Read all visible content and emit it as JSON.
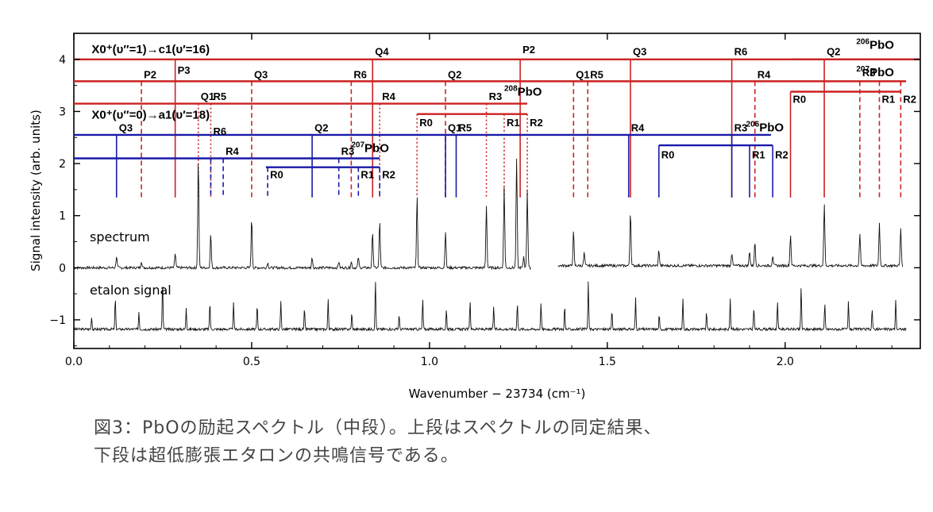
{
  "chart_data": {
    "type": "line",
    "xlabel": "Wavenumber − 23734 (cm⁻¹)",
    "ylabel": "Signal intensity (arb. units)",
    "xlim": [
      0,
      2.38
    ],
    "ylim": [
      -1.55,
      4.5
    ],
    "xticks": [
      0.0,
      0.5,
      1.0,
      1.5,
      2.0
    ],
    "xtick_labels": [
      "0.0",
      "0.5",
      "1.0",
      "1.5",
      "2.0"
    ],
    "yticks": [
      -1,
      0,
      1,
      2,
      3,
      4
    ],
    "ytick_labels": [
      "−1",
      "0",
      "1",
      "2",
      "3",
      "4"
    ],
    "grid": false,
    "trace_labels": {
      "spectrum": "spectrum",
      "etalon": "etalon signal"
    },
    "spectrum_peaks": [
      {
        "x": 0.12,
        "y": 0.22
      },
      {
        "x": 0.19,
        "y": 0.13
      },
      {
        "x": 0.285,
        "y": 0.28
      },
      {
        "x": 0.35,
        "y": 2.1
      },
      {
        "x": 0.385,
        "y": 0.65
      },
      {
        "x": 0.5,
        "y": 0.95
      },
      {
        "x": 0.545,
        "y": 0.1
      },
      {
        "x": 0.67,
        "y": 0.2
      },
      {
        "x": 0.745,
        "y": 0.12
      },
      {
        "x": 0.78,
        "y": 0.12
      },
      {
        "x": 0.8,
        "y": 0.2
      },
      {
        "x": 0.84,
        "y": 0.7
      },
      {
        "x": 0.86,
        "y": 0.9
      },
      {
        "x": 0.965,
        "y": 1.35
      },
      {
        "x": 1.045,
        "y": 0.7
      },
      {
        "x": 1.16,
        "y": 1.2
      },
      {
        "x": 1.21,
        "y": 1.55
      },
      {
        "x": 1.245,
        "y": 2.1
      },
      {
        "x": 1.265,
        "y": 0.22
      },
      {
        "x": 1.275,
        "y": 1.5
      },
      {
        "x": 1.405,
        "y": 0.65
      },
      {
        "x": 1.435,
        "y": 0.25
      },
      {
        "x": 1.565,
        "y": 1.05
      },
      {
        "x": 1.645,
        "y": 0.3
      },
      {
        "x": 1.85,
        "y": 0.25
      },
      {
        "x": 1.9,
        "y": 0.28
      },
      {
        "x": 1.915,
        "y": 0.45
      },
      {
        "x": 1.965,
        "y": 0.2
      },
      {
        "x": 2.015,
        "y": 0.6
      },
      {
        "x": 2.11,
        "y": 1.18
      },
      {
        "x": 2.21,
        "y": 0.62
      },
      {
        "x": 2.265,
        "y": 0.82
      },
      {
        "x": 2.325,
        "y": 0.72
      }
    ],
    "spectrum_gap": [
      1.285,
      1.36
    ],
    "etalon_baseline": -1.18,
    "etalon_fsr": 0.0665,
    "annotation_groups": [
      {
        "name": "X0⁺(υ″=1)→c1(υ′=16)",
        "color": "#cc2222",
        "isotope": "",
        "y": 4.0,
        "x1": 0,
        "x2": 2.38,
        "label_x": 0.05,
        "label_y": 4.12,
        "lines": [
          {
            "label": "P3",
            "x": 0.285,
            "style": "solid",
            "label_y": 3.72
          }
        ]
      },
      {
        "name": "",
        "color": "#cc2222",
        "isotope": "206PbO",
        "y": 4.0,
        "x1": 2.02,
        "x2": 2.38,
        "label_x": 2.2,
        "label_y": 4.2,
        "lines": []
      },
      {
        "name": "",
        "color": "#cc2222",
        "isotope": "",
        "y": 4.0,
        "x1": 0,
        "x2": 0,
        "label_x": 0,
        "label_y": 0,
        "lines": [
          {
            "label": "Q4",
            "x": 0.84,
            "style": "solid",
            "label_y": 4.08
          },
          {
            "label": "P2",
            "x": 1.255,
            "style": "solid",
            "label_y": 4.12
          },
          {
            "label": "Q3",
            "x": 1.565,
            "style": "solid",
            "label_y": 4.08
          },
          {
            "label": "R6",
            "x": 1.85,
            "style": "solid",
            "label_y": 4.08
          },
          {
            "label": "Q2",
            "x": 2.11,
            "style": "solid",
            "label_y": 4.08
          }
        ]
      },
      {
        "name": "",
        "color": "#cc2222",
        "isotope": "207PbO",
        "y": 3.58,
        "x1": 0,
        "x2": 2.34,
        "label_x": 2.2,
        "label_y": 3.68,
        "lines": [
          {
            "label": "P2",
            "x": 0.19,
            "style": "dashed",
            "label_y": 3.64
          },
          {
            "label": "Q3",
            "x": 0.5,
            "style": "dashed",
            "label_y": 3.64
          },
          {
            "label": "R6",
            "x": 0.78,
            "style": "dashed",
            "label_y": 3.64
          },
          {
            "label": "Q2",
            "x": 1.045,
            "style": "dashed",
            "label_y": 3.64
          },
          {
            "label": "Q1",
            "x": 1.405,
            "style": "dashed",
            "label_y": 3.64
          },
          {
            "label": "R5",
            "x": 1.445,
            "style": "dashed",
            "label_y": 3.64
          },
          {
            "label": "R4",
            "x": 1.915,
            "style": "dashed",
            "label_y": 3.64
          },
          {
            "label": "R3",
            "x": 2.21,
            "style": "dashed",
            "label_y": 3.68
          },
          {
            "label": "R1",
            "x": 2.265,
            "style": "dashed",
            "label_y": 3.17
          },
          {
            "label": "R2",
            "x": 2.325,
            "style": "dashed",
            "label_y": 3.17
          }
        ]
      },
      {
        "name": "",
        "color": "#cc2222",
        "isotope": "",
        "y": 3.38,
        "x1": 2.015,
        "x2": 2.325,
        "label_x": 0,
        "label_y": 0,
        "lines": [
          {
            "label": "R0",
            "x": 2.015,
            "style": "solid",
            "label_y": 3.17
          }
        ]
      },
      {
        "name": "",
        "color": "#cc2222",
        "isotope": "208PbO",
        "y": 3.15,
        "x1": 0,
        "x2": 1.275,
        "label_x": 1.21,
        "label_y": 3.3,
        "lines": [
          {
            "label": "Q1",
            "x": 0.35,
            "style": "dotted",
            "label_y": 3.22
          },
          {
            "label": "R5",
            "x": 0.385,
            "style": "dotted",
            "label_y": 3.22
          },
          {
            "label": "R4",
            "x": 0.86,
            "style": "dotted",
            "label_y": 3.22
          },
          {
            "label": "R3",
            "x": 1.16,
            "style": "dotted",
            "label_y": 3.22
          }
        ]
      },
      {
        "name": "",
        "color": "#cc2222",
        "isotope": "",
        "y": 2.95,
        "x1": 0.965,
        "x2": 1.275,
        "label_x": 0,
        "label_y": 0,
        "lines": [
          {
            "label": "R0",
            "x": 0.965,
            "style": "dotted",
            "label_y": 2.72
          },
          {
            "label": "R1",
            "x": 1.21,
            "style": "dotted",
            "label_y": 2.72
          },
          {
            "label": "R2",
            "x": 1.275,
            "style": "dotted",
            "label_y": 2.72
          }
        ]
      },
      {
        "name": "X0⁺(υ″=0)→a1(υ′=18)",
        "color": "#1a1aaa",
        "isotope": "",
        "y": 2.55,
        "x1": 0,
        "x2": 1.96,
        "label_x": 0.05,
        "label_y": 2.86,
        "lines": [
          {
            "label": "Q3",
            "x": 0.12,
            "style": "solid",
            "label_y": 2.62
          },
          {
            "label": "Q2",
            "x": 0.67,
            "style": "solid",
            "label_y": 2.62
          },
          {
            "label": "Q1",
            "x": 1.045,
            "style": "solid",
            "label_y": 2.62
          },
          {
            "label": "R5",
            "x": 1.075,
            "style": "solid",
            "label_y": 2.62
          },
          {
            "label": "R4",
            "x": 1.56,
            "style": "solid",
            "label_y": 2.62
          },
          {
            "label": "R3",
            "x": 1.85,
            "style": "solid",
            "label_y": 2.62
          }
        ]
      },
      {
        "name": "",
        "color": "#1a1aaa",
        "isotope": "206PbO",
        "y": 2.35,
        "x1": 1.645,
        "x2": 1.965,
        "label_x": 1.89,
        "label_y": 2.62,
        "lines": [
          {
            "label": "R0",
            "x": 1.645,
            "style": "solid",
            "label_y": 2.1
          },
          {
            "label": "R1",
            "x": 1.9,
            "style": "solid",
            "label_y": 2.1
          },
          {
            "label": "R2",
            "x": 1.965,
            "style": "solid",
            "label_y": 2.1
          }
        ]
      },
      {
        "name": "",
        "color": "#1a1aaa",
        "isotope": "207PbO",
        "y": 2.1,
        "x1": 0,
        "x2": 0.86,
        "label_x": 0.78,
        "label_y": 2.22,
        "lines": [
          {
            "label": "R6",
            "x": 0.385,
            "style": "dashed",
            "label_y": 2.55
          },
          {
            "label": "R4",
            "x": 0.42,
            "style": "dashed",
            "label_y": 2.17
          },
          {
            "label": "R3",
            "x": 0.745,
            "style": "dashed",
            "label_y": 2.17
          }
        ]
      },
      {
        "name": "",
        "color": "#1a1aaa",
        "isotope": "",
        "y": 1.93,
        "x1": 0.54,
        "x2": 0.86,
        "label_x": 0,
        "label_y": 0,
        "lines": [
          {
            "label": "R0",
            "x": 0.545,
            "style": "dashed",
            "label_y": 1.72
          },
          {
            "label": "R1",
            "x": 0.8,
            "style": "dashed",
            "label_y": 1.72
          },
          {
            "label": "R2",
            "x": 0.86,
            "style": "dashed",
            "label_y": 1.72
          }
        ]
      }
    ]
  },
  "caption": {
    "line1": "図3：PbOの励起スペクトル（中段）。上段はスペクトルの同定結果、",
    "line2": "下段は超低膨張エタロンの共鳴信号である。"
  }
}
